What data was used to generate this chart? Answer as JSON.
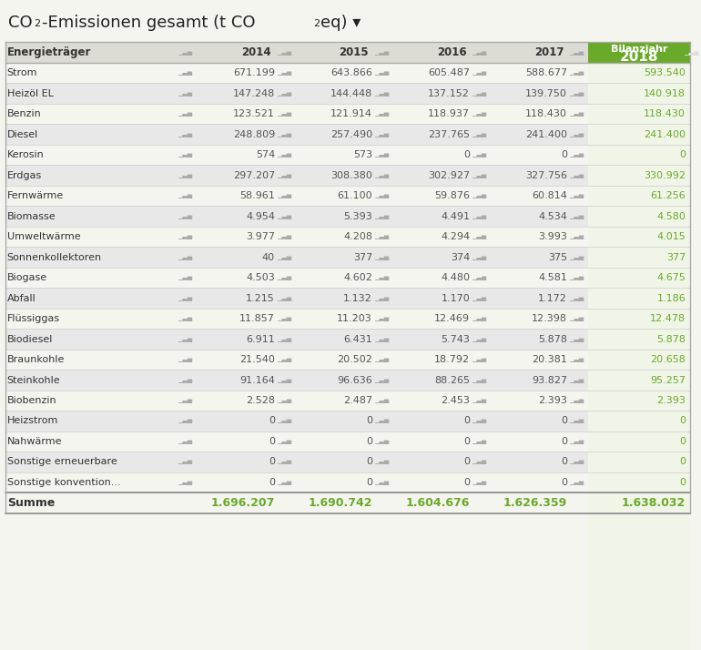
{
  "title_prefix": "CO",
  "title_suffix": "-Emissionen gesamt (t CO",
  "title_end": "eq) ▾",
  "columns": [
    "Energieträger",
    "2014",
    "2015",
    "2016",
    "2017",
    "2018"
  ],
  "rows": [
    [
      "Strom",
      "671.199",
      "643.866",
      "605.487",
      "588.677",
      "593.540"
    ],
    [
      "Heizöl EL",
      "147.248",
      "144.448",
      "137.152",
      "139.750",
      "140.918"
    ],
    [
      "Benzin",
      "123.521",
      "121.914",
      "118.937",
      "118.430",
      "118.430"
    ],
    [
      "Diesel",
      "248.809",
      "257.490",
      "237.765",
      "241.400",
      "241.400"
    ],
    [
      "Kerosin",
      "574",
      "573",
      "0",
      "0",
      "0"
    ],
    [
      "Erdgas",
      "297.207",
      "308.380",
      "302.927",
      "327.756",
      "330.992"
    ],
    [
      "Fernwärme",
      "58.961",
      "61.100",
      "59.876",
      "60.814",
      "61.256"
    ],
    [
      "Biomasse",
      "4.954",
      "5.393",
      "4.491",
      "4.534",
      "4.580"
    ],
    [
      "Umweltwärme",
      "3.977",
      "4.208",
      "4.294",
      "3.993",
      "4.015"
    ],
    [
      "Sonnenkollektoren",
      "40",
      "377",
      "374",
      "375",
      "377"
    ],
    [
      "Biogase",
      "4.503",
      "4.602",
      "4.480",
      "4.581",
      "4.675"
    ],
    [
      "Abfall",
      "1.215",
      "1.132",
      "1.170",
      "1.172",
      "1.186"
    ],
    [
      "Flüssiggas",
      "11.857",
      "11.203",
      "12.469",
      "12.398",
      "12.478"
    ],
    [
      "Biodiesel",
      "6.911",
      "6.431",
      "5.743",
      "5.878",
      "5.878"
    ],
    [
      "Braunkohle",
      "21.540",
      "20.502",
      "18.792",
      "20.381",
      "20.658"
    ],
    [
      "Steinkohle",
      "91.164",
      "96.636",
      "88.265",
      "93.827",
      "95.257"
    ],
    [
      "Biobenzin",
      "2.528",
      "2.487",
      "2.453",
      "2.393",
      "2.393"
    ],
    [
      "Heizstrom",
      "0",
      "0",
      "0",
      "0",
      "0"
    ],
    [
      "Nahwärme",
      "0",
      "0",
      "0",
      "0",
      "0"
    ],
    [
      "Sonstige erneuerbare",
      "0",
      "0",
      "0",
      "0",
      "0"
    ],
    [
      "Sonstige konvention...",
      "0",
      "0",
      "0",
      "0",
      "0"
    ]
  ],
  "summe_row": [
    "Summe",
    "1.696.207",
    "1.690.742",
    "1.604.676",
    "1.626.359",
    "1.638.032"
  ],
  "bg_color_main": "#f5f5f0",
  "bg_color_header_green": "#6aaa2a",
  "bg_color_2018_col": "#f0f5e8",
  "bg_color_alt": "#e8e8e0",
  "text_color_normal": "#555555",
  "text_color_green": "#6aaa2a",
  "text_color_header": "#333333"
}
